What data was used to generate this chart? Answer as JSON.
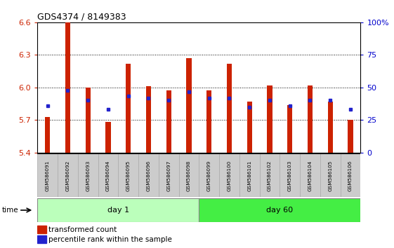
{
  "title": "GDS4374 / 8149383",
  "samples": [
    "GSM586091",
    "GSM586092",
    "GSM586093",
    "GSM586094",
    "GSM586095",
    "GSM586096",
    "GSM586097",
    "GSM586098",
    "GSM586099",
    "GSM586100",
    "GSM586101",
    "GSM586102",
    "GSM586103",
    "GSM586104",
    "GSM586105",
    "GSM586106"
  ],
  "red_values": [
    5.73,
    6.6,
    6.0,
    5.68,
    6.22,
    6.01,
    5.97,
    6.27,
    5.97,
    6.22,
    5.87,
    6.02,
    5.84,
    6.02,
    5.87,
    5.7
  ],
  "blue_values": [
    5.83,
    5.97,
    5.88,
    5.8,
    5.92,
    5.9,
    5.88,
    5.96,
    5.9,
    5.9,
    5.82,
    5.88,
    5.83,
    5.88,
    5.88,
    5.8
  ],
  "ylim_left": [
    5.4,
    6.6
  ],
  "ylim_right": [
    0,
    100
  ],
  "yticks_left": [
    5.4,
    5.7,
    6.0,
    6.3,
    6.6
  ],
  "yticks_right": [
    0,
    25,
    50,
    75,
    100
  ],
  "ytick_right_labels": [
    "0",
    "25",
    "50",
    "75",
    "100%"
  ],
  "base": 5.4,
  "bar_color": "#cc2200",
  "blue_color": "#2222cc",
  "day1_color": "#bbffbb",
  "day60_color": "#44ee44",
  "day1_samples": 8,
  "day60_samples": 8,
  "bar_width": 0.25,
  "bg_color": "#ffffff",
  "axis_label_color_left": "#cc2200",
  "axis_label_color_right": "#0000cc",
  "label_bg": "#cccccc",
  "label_border": "#aaaaaa"
}
